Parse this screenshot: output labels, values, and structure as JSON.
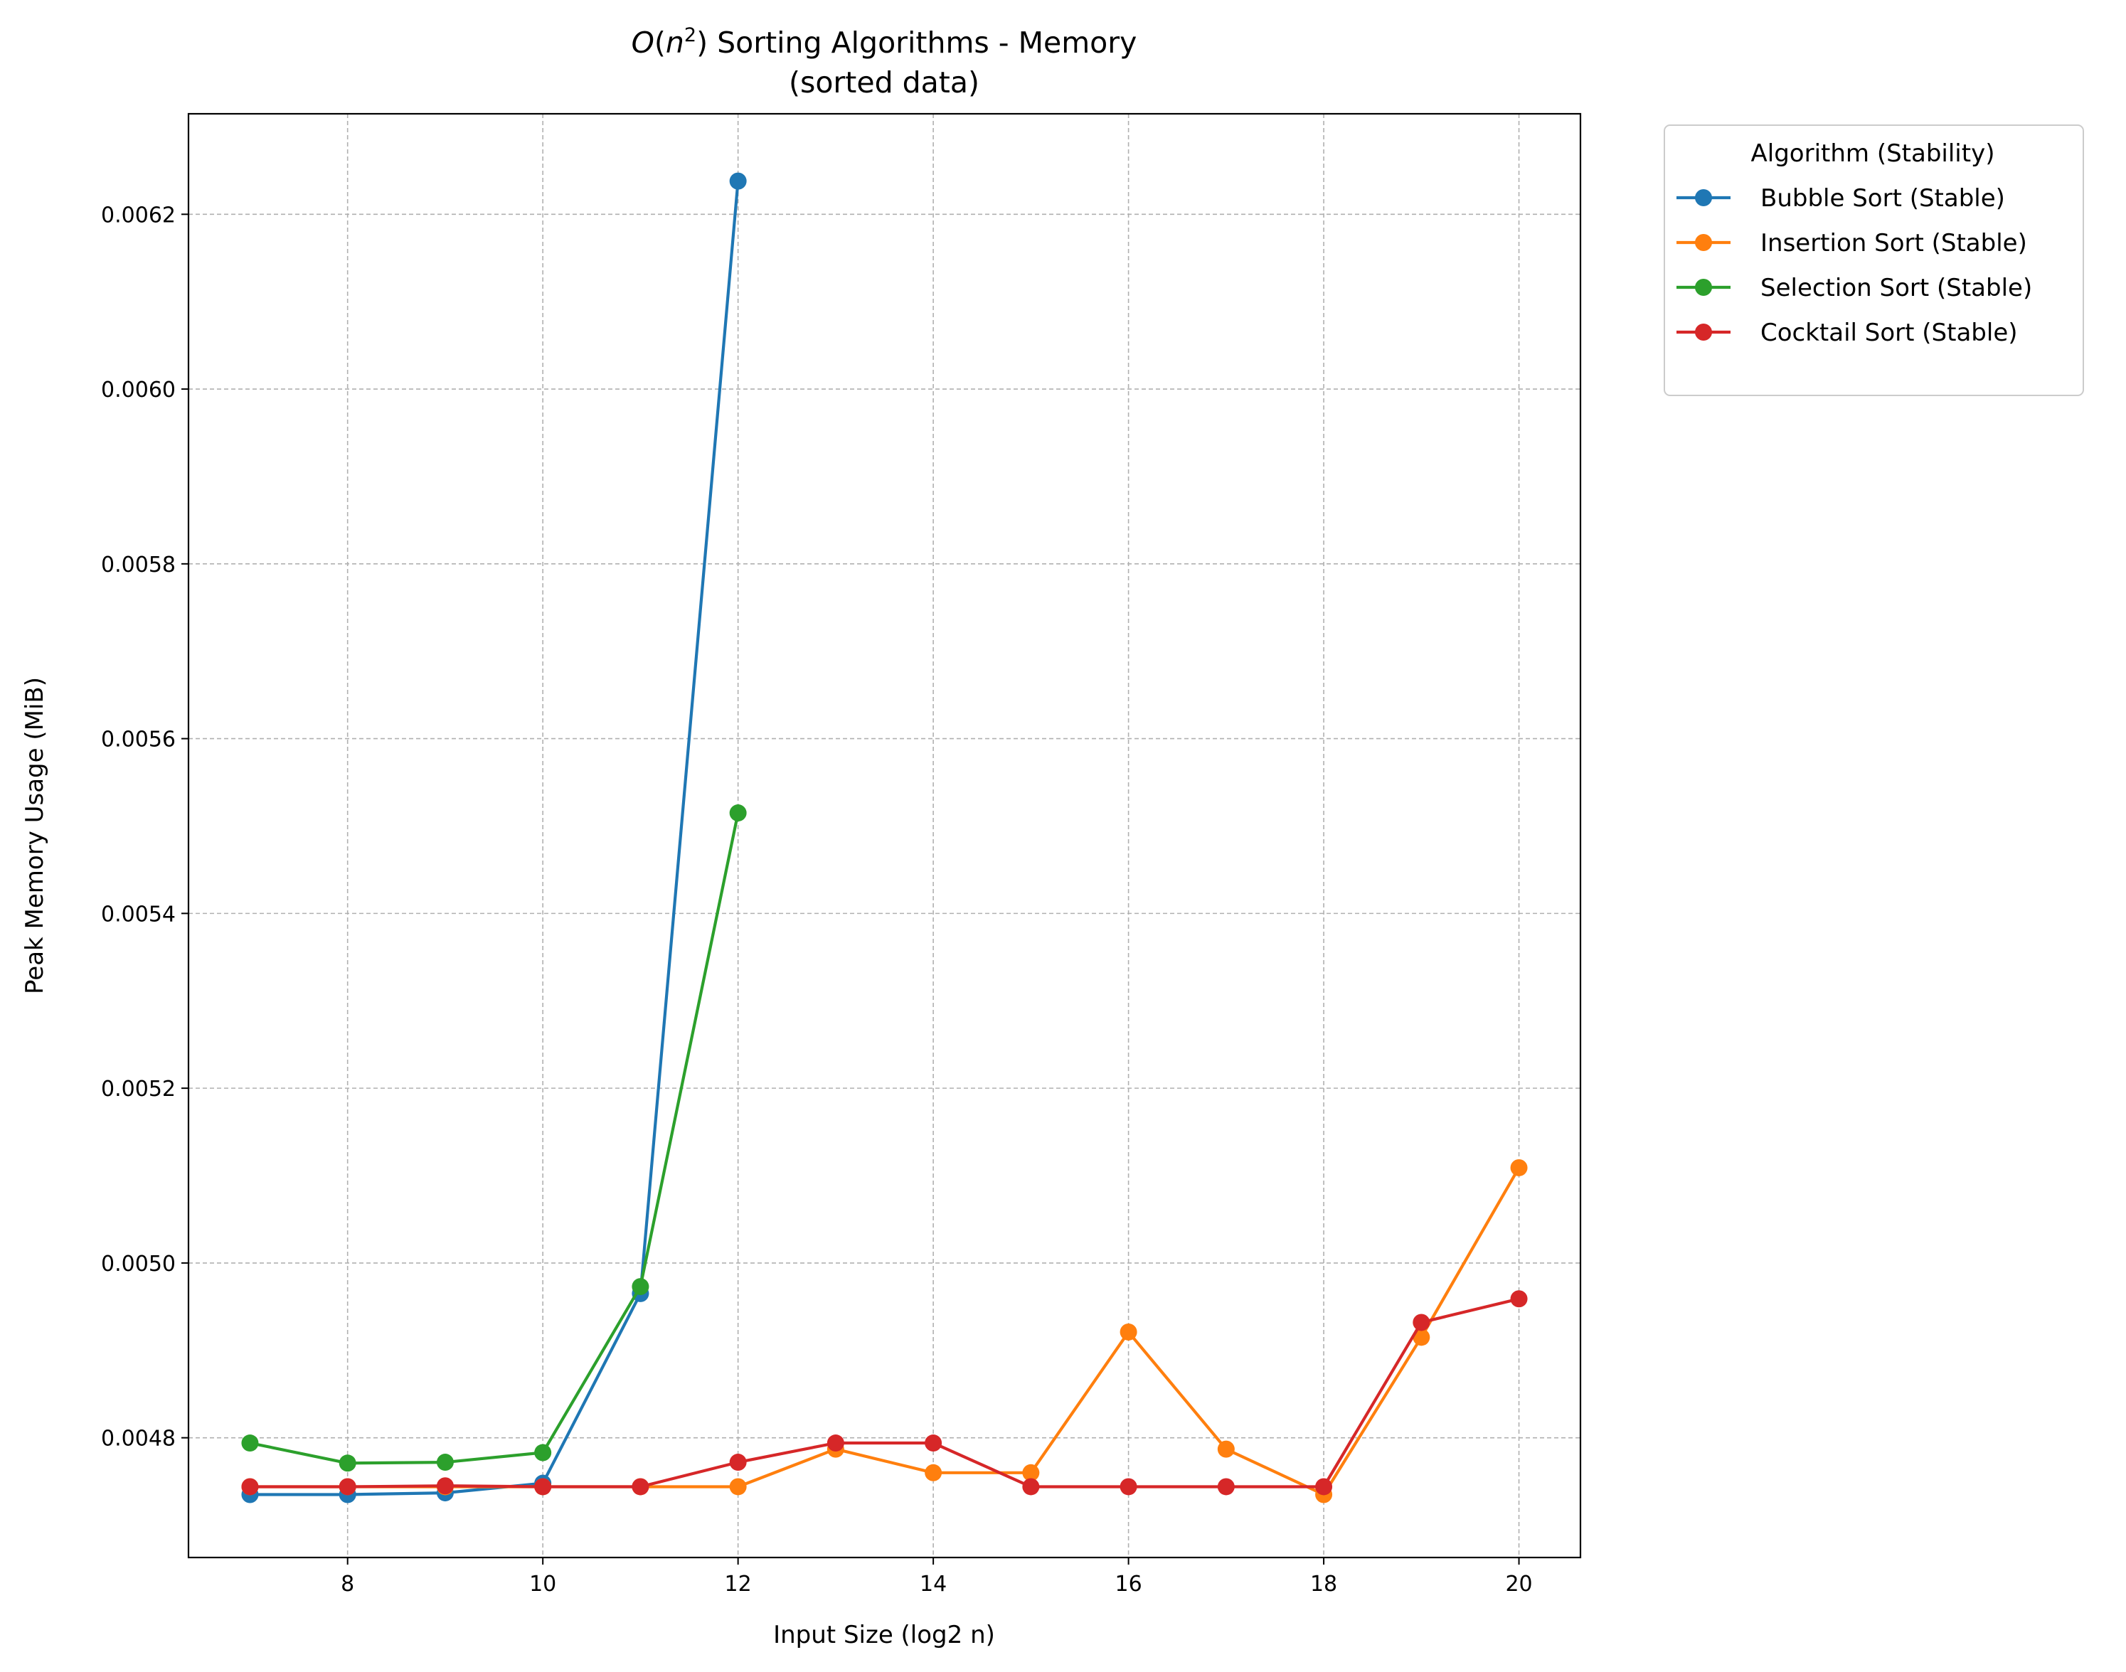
{
  "chart_data": {
    "type": "line",
    "title": "O(n²) Sorting Algorithms - Memory",
    "title_big_o": "O",
    "title_n": "n",
    "title_rest": "Sorting Algorithms - Memory",
    "subtitle": "(sorted data)",
    "xlabel": "Input Size (log2 n)",
    "ylabel": "Peak Memory Usage (MiB)",
    "xlim": [
      6.37,
      20.63
    ],
    "ylim": [
      0.004663,
      0.006315
    ],
    "xticks": [
      8,
      10,
      12,
      14,
      16,
      18,
      20
    ],
    "yticks": [
      0.0048,
      0.005,
      0.0052,
      0.0054,
      0.0056,
      0.0058,
      0.006,
      0.0062
    ],
    "grid": true,
    "legend": {
      "title": "Algorithm (Stability)",
      "placement": "outside-top-right"
    },
    "series": [
      {
        "name": "Bubble Sort (Stable)",
        "color": "#1f77b4",
        "x": [
          7,
          8,
          9,
          10,
          11,
          12
        ],
        "y": [
          0.004735,
          0.004735,
          0.004737,
          0.004748,
          0.004965,
          0.006238
        ]
      },
      {
        "name": "Insertion Sort (Stable)",
        "color": "#ff7f0e",
        "x": [
          7,
          8,
          9,
          10,
          11,
          12,
          13,
          14,
          15,
          16,
          17,
          18,
          19,
          20
        ],
        "y": [
          0.004744,
          0.004744,
          0.004744,
          0.004744,
          0.004744,
          0.004744,
          0.004787,
          0.00476,
          0.00476,
          0.004921,
          0.004787,
          0.004735,
          0.004915,
          0.005109
        ]
      },
      {
        "name": "Selection Sort (Stable)",
        "color": "#2ca02c",
        "x": [
          7,
          8,
          9,
          10,
          11,
          12
        ],
        "y": [
          0.004794,
          0.004771,
          0.004772,
          0.004783,
          0.004973,
          0.005515
        ]
      },
      {
        "name": "Cocktail Sort (Stable)",
        "color": "#d62728",
        "x": [
          7,
          8,
          9,
          10,
          11,
          12,
          13,
          14,
          15,
          16,
          17,
          18,
          19,
          20
        ],
        "y": [
          0.004744,
          0.004744,
          0.004745,
          0.004744,
          0.004744,
          0.004772,
          0.004794,
          0.004794,
          0.004744,
          0.004744,
          0.004744,
          0.004744,
          0.004932,
          0.004959
        ]
      }
    ]
  }
}
